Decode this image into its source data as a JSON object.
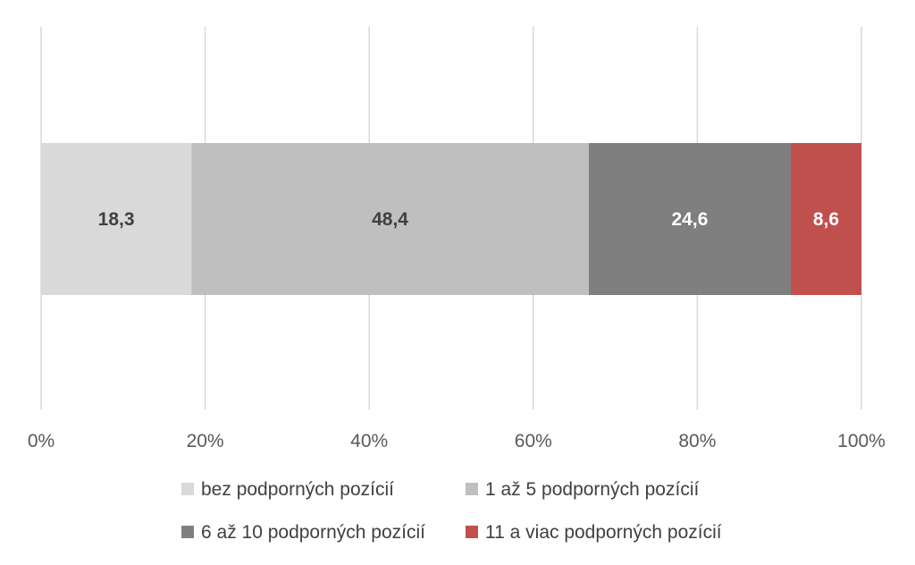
{
  "chart_data": {
    "type": "bar",
    "orientation": "horizontal",
    "stacked": "percent",
    "title": "",
    "xlabel": "",
    "ylabel": "",
    "xlim": [
      0,
      100
    ],
    "x_ticks": [
      "0%",
      "20%",
      "40%",
      "60%",
      "80%",
      "100%"
    ],
    "grid": true,
    "legend_position": "bottom",
    "series": [
      {
        "name": "bez podporných pozícií",
        "value": 18.3,
        "label": "18,3",
        "color": "#d9d9d9",
        "label_color": "#404040"
      },
      {
        "name": "1 až 5 podporných pozícií",
        "value": 48.4,
        "label": "48,4",
        "color": "#bfbfbf",
        "label_color": "#404040"
      },
      {
        "name": "6 až 10 podporných pozícií",
        "value": 24.6,
        "label": "24,6",
        "color": "#7f7f7f",
        "label_color": "#ffffff"
      },
      {
        "name": "11 a viac podporných pozícií",
        "value": 8.6,
        "label": "8,6",
        "color": "#c0504d",
        "label_color": "#ffffff"
      }
    ]
  }
}
